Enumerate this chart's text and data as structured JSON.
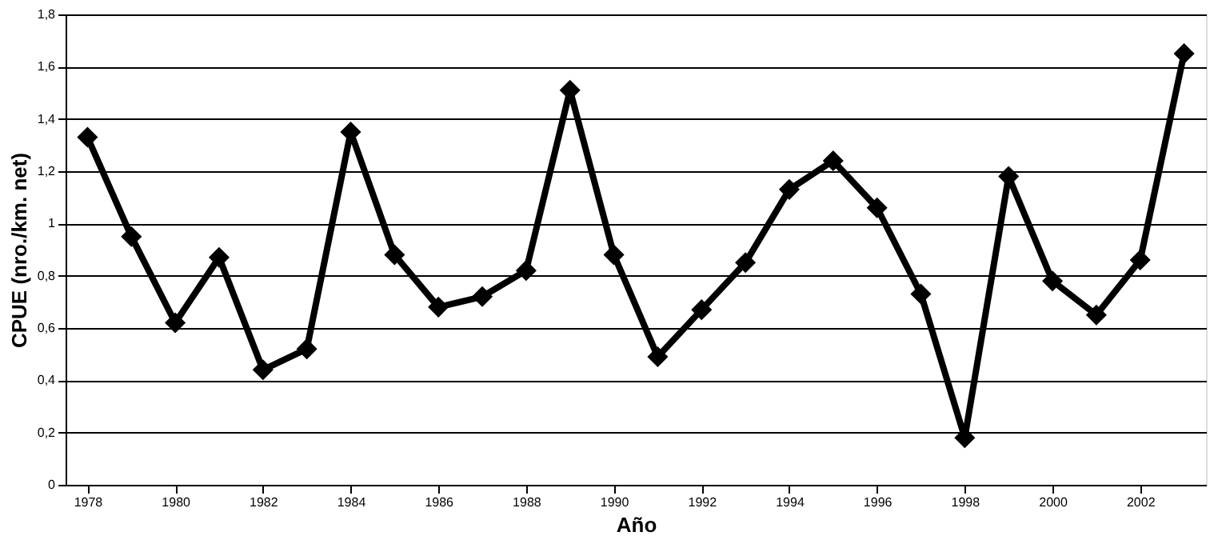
{
  "chart_data": {
    "type": "line",
    "xlabel": "Año",
    "ylabel": "CPUE (nro./km. net)",
    "x": [
      1978,
      1979,
      1980,
      1981,
      1982,
      1983,
      1984,
      1985,
      1986,
      1987,
      1988,
      1989,
      1990,
      1991,
      1992,
      1993,
      1994,
      1995,
      1996,
      1997,
      1998,
      1999,
      2000,
      2001,
      2002,
      2003
    ],
    "series": [
      {
        "color": "#000000",
        "values": [
          1.33,
          0.95,
          0.62,
          0.87,
          0.44,
          0.52,
          1.35,
          0.88,
          0.68,
          0.72,
          0.82,
          1.51,
          0.88,
          0.49,
          0.67,
          0.85,
          1.13,
          1.24,
          1.06,
          0.73,
          0.18,
          1.18,
          0.78,
          0.65,
          0.86,
          1.65
        ]
      }
    ],
    "xlim": [
      1977.5,
      2003.5
    ],
    "xticks": [
      1978,
      1980,
      1982,
      1984,
      1986,
      1988,
      1990,
      1992,
      1994,
      1996,
      1998,
      2000,
      2002
    ],
    "ylim": [
      0,
      1.8
    ],
    "yticks": [
      0,
      {
        "value": 0.2,
        "label": "0,2"
      },
      {
        "value": 0.4,
        "label": "0,4"
      },
      {
        "value": 0.6,
        "label": "0,6"
      },
      {
        "value": 0.8,
        "label": "0,8"
      },
      1,
      {
        "value": 1.2,
        "label": "1,2"
      },
      {
        "value": 1.4,
        "label": "1,4"
      },
      {
        "value": 1.6,
        "label": "1,6"
      },
      {
        "value": 1.8,
        "label": "1,8"
      }
    ],
    "grid": "y",
    "marker": "diamond",
    "line_style": "solid"
  }
}
